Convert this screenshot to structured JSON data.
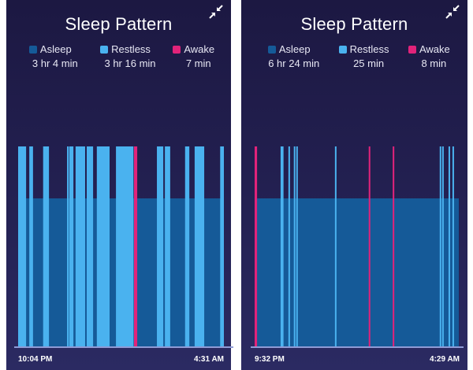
{
  "colors": {
    "asleep": "#155a98",
    "restless": "#4ab2ef",
    "awake": "#e2237a",
    "axis": "#8f9bd6"
  },
  "panels": [
    {
      "title": "Sleep Pattern",
      "icon": "compress-arrows-icon",
      "legend": [
        {
          "label": "Asleep",
          "value": "3 hr 4 min",
          "color": "#155a98"
        },
        {
          "label": "Restless",
          "value": "3 hr 16 min",
          "color": "#4ab2ef"
        },
        {
          "label": "Awake",
          "value": "7 min",
          "color": "#e2237a"
        }
      ],
      "start_label": "10:04 PM",
      "end_label": "4:31 AM"
    },
    {
      "title": "Sleep Pattern",
      "icon": "compress-arrows-icon",
      "legend": [
        {
          "label": "Asleep",
          "value": "6 hr 24 min",
          "color": "#155a98"
        },
        {
          "label": "Restless",
          "value": "25 min",
          "color": "#4ab2ef"
        },
        {
          "label": "Awake",
          "value": "8 min",
          "color": "#e2237a"
        }
      ],
      "start_label": "9:32 PM",
      "end_label": "4:29 AM"
    }
  ],
  "chart_data": [
    {
      "type": "bar",
      "title": "Sleep Pattern",
      "x_range": [
        "22:04",
        "04:31"
      ],
      "levels": [
        "asleep",
        "restless",
        "awake"
      ],
      "baseline": "asleep",
      "segments": [
        {
          "state": "restless",
          "start": "22:04",
          "end": "22:19"
        },
        {
          "state": "restless",
          "start": "22:25",
          "end": "22:32"
        },
        {
          "state": "restless",
          "start": "22:51",
          "end": "23:02"
        },
        {
          "state": "restless",
          "start": "23:36",
          "end": "23:39"
        },
        {
          "state": "restless",
          "start": "23:40",
          "end": "23:48"
        },
        {
          "state": "restless",
          "start": "23:52",
          "end": "00:10"
        },
        {
          "state": "restless",
          "start": "00:13",
          "end": "00:25"
        },
        {
          "state": "restless",
          "start": "00:32",
          "end": "00:56"
        },
        {
          "state": "restless",
          "start": "01:08",
          "end": "01:41"
        },
        {
          "state": "awake",
          "start": "01:42",
          "end": "01:48"
        },
        {
          "state": "restless",
          "start": "02:25",
          "end": "02:37"
        },
        {
          "state": "restless",
          "start": "02:40",
          "end": "02:50"
        },
        {
          "state": "restless",
          "start": "03:18",
          "end": "03:26"
        },
        {
          "state": "restless",
          "start": "03:36",
          "end": "03:54"
        },
        {
          "state": "restless",
          "start": "04:24",
          "end": "04:31"
        }
      ]
    },
    {
      "type": "bar",
      "title": "Sleep Pattern",
      "x_range": [
        "21:32",
        "04:29"
      ],
      "levels": [
        "asleep",
        "restless",
        "awake"
      ],
      "baseline": "asleep",
      "segments": [
        {
          "state": "awake",
          "start": "21:32",
          "end": "21:37"
        },
        {
          "state": "restless",
          "start": "22:25",
          "end": "22:31"
        },
        {
          "state": "restless",
          "start": "22:41",
          "end": "22:43"
        },
        {
          "state": "restless",
          "start": "22:52",
          "end": "22:55"
        },
        {
          "state": "restless",
          "start": "22:57",
          "end": "22:59"
        },
        {
          "state": "restless",
          "start": "00:16",
          "end": "00:19"
        },
        {
          "state": "awake",
          "start": "01:25",
          "end": "01:27"
        },
        {
          "state": "awake",
          "start": "02:14",
          "end": "02:17"
        },
        {
          "state": "restless",
          "start": "03:50",
          "end": "03:52"
        },
        {
          "state": "restless",
          "start": "03:55",
          "end": "03:57"
        },
        {
          "state": "restless",
          "start": "04:08",
          "end": "04:11"
        },
        {
          "state": "restless",
          "start": "04:16",
          "end": "04:19"
        }
      ]
    }
  ]
}
